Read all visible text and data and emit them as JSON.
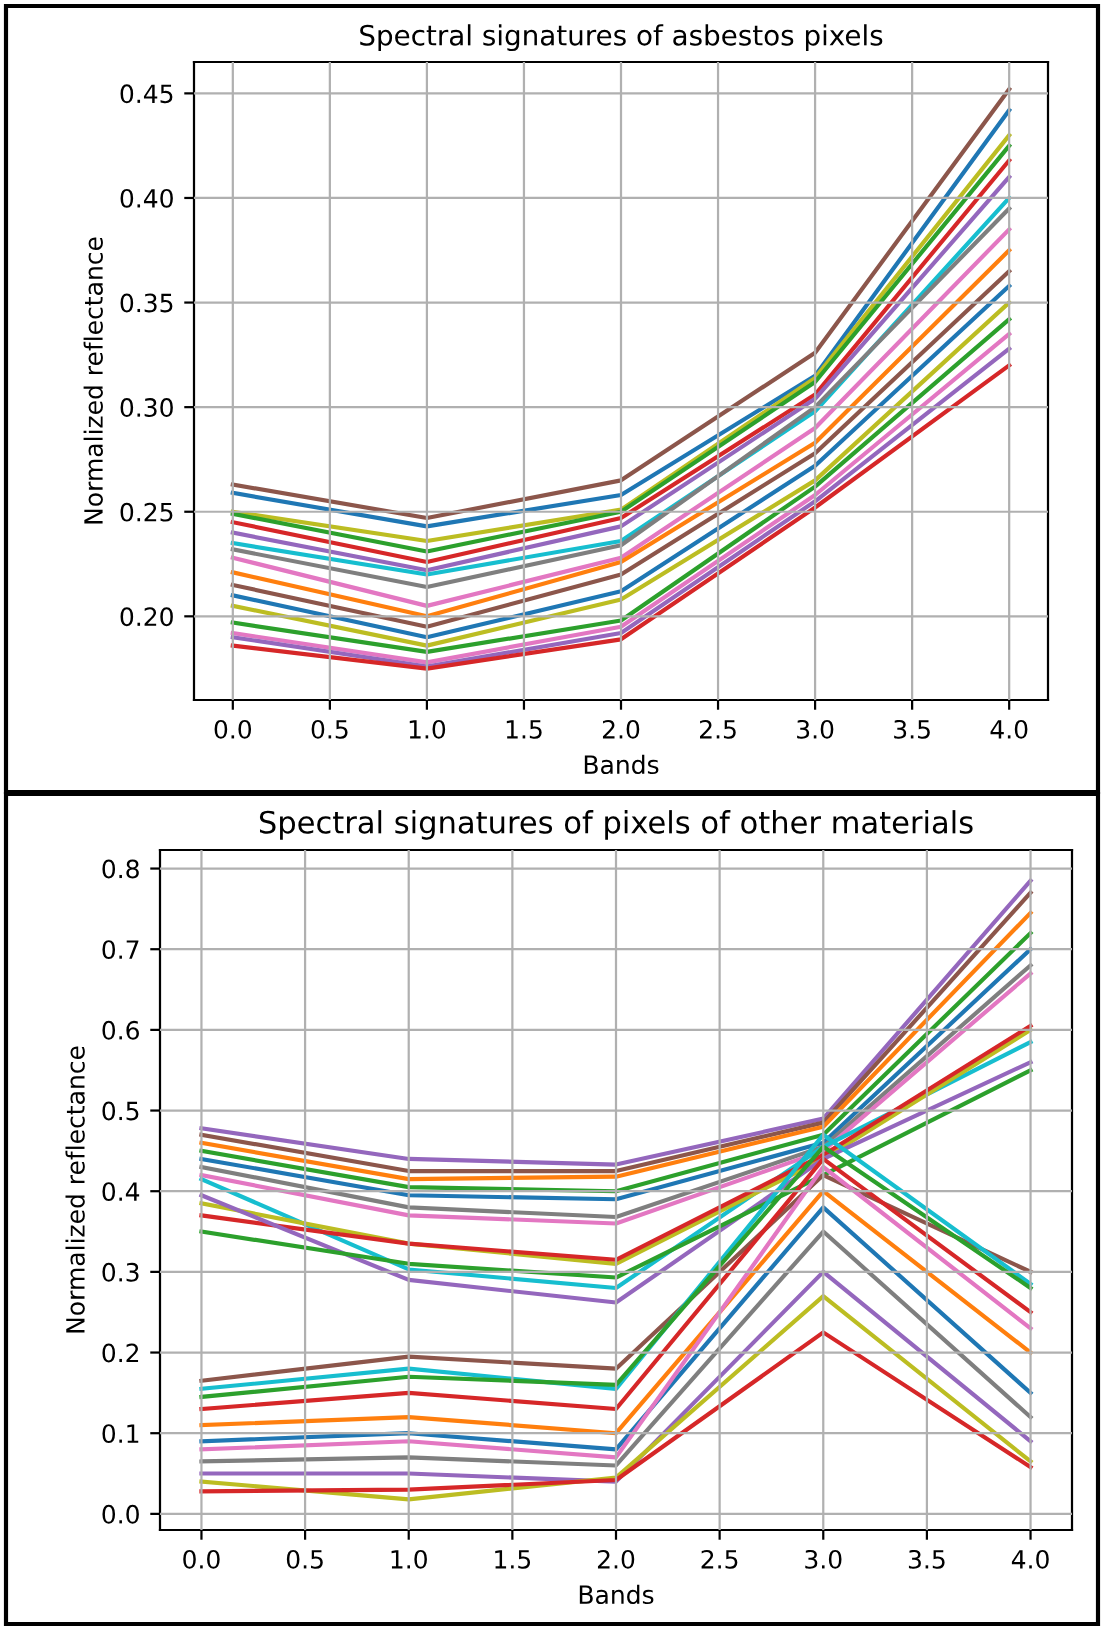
{
  "chart_data": [
    {
      "type": "line",
      "title": "Spectral signatures of asbestos pixels",
      "xlabel": "Bands",
      "ylabel": "Normalized reflectance",
      "grid": true,
      "x": [
        0,
        1,
        2,
        3,
        4
      ],
      "xlim": [
        -0.2,
        4.2
      ],
      "xticks": [
        {
          "value": 0,
          "label": "0.0"
        },
        {
          "value": 0.5,
          "label": "0.5"
        },
        {
          "value": 1,
          "label": "1.0"
        },
        {
          "value": 1.5,
          "label": "1.5"
        },
        {
          "value": 2,
          "label": "2.0"
        },
        {
          "value": 2.5,
          "label": "2.5"
        },
        {
          "value": 3,
          "label": "3.0"
        },
        {
          "value": 3.5,
          "label": "3.5"
        },
        {
          "value": 4,
          "label": "4.0"
        }
      ],
      "ylim": [
        0.16,
        0.465
      ],
      "yticks": [
        {
          "value": 0.2,
          "label": "0.20"
        },
        {
          "value": 0.25,
          "label": "0.25"
        },
        {
          "value": 0.3,
          "label": "0.30"
        },
        {
          "value": 0.35,
          "label": "0.35"
        },
        {
          "value": 0.4,
          "label": "0.40"
        },
        {
          "value": 0.45,
          "label": "0.45"
        }
      ],
      "series": [
        {
          "color": "#8c564b",
          "values": [
            0.263,
            0.247,
            0.265,
            0.326,
            0.452
          ]
        },
        {
          "color": "#1f77b4",
          "values": [
            0.259,
            0.243,
            0.258,
            0.315,
            0.442
          ]
        },
        {
          "color": "#bcbd22",
          "values": [
            0.25,
            0.236,
            0.251,
            0.314,
            0.43
          ]
        },
        {
          "color": "#2ca02c",
          "values": [
            0.249,
            0.231,
            0.25,
            0.312,
            0.425
          ]
        },
        {
          "color": "#d62728",
          "values": [
            0.245,
            0.226,
            0.247,
            0.306,
            0.418
          ]
        },
        {
          "color": "#9467bd",
          "values": [
            0.24,
            0.222,
            0.243,
            0.304,
            0.41
          ]
        },
        {
          "color": "#17becf",
          "values": [
            0.235,
            0.22,
            0.236,
            0.298,
            0.4
          ]
        },
        {
          "color": "#7f7f7f",
          "values": [
            0.232,
            0.214,
            0.234,
            0.3,
            0.395
          ]
        },
        {
          "color": "#e377c2",
          "values": [
            0.228,
            0.205,
            0.228,
            0.29,
            0.385
          ]
        },
        {
          "color": "#ff7f0e",
          "values": [
            0.221,
            0.2,
            0.226,
            0.283,
            0.375
          ]
        },
        {
          "color": "#8c564b",
          "values": [
            0.215,
            0.195,
            0.22,
            0.278,
            0.365
          ]
        },
        {
          "color": "#1f77b4",
          "values": [
            0.21,
            0.19,
            0.212,
            0.272,
            0.358
          ]
        },
        {
          "color": "#bcbd22",
          "values": [
            0.205,
            0.186,
            0.208,
            0.265,
            0.35
          ]
        },
        {
          "color": "#2ca02c",
          "values": [
            0.197,
            0.183,
            0.198,
            0.262,
            0.342
          ]
        },
        {
          "color": "#e377c2",
          "values": [
            0.192,
            0.178,
            0.195,
            0.258,
            0.335
          ]
        },
        {
          "color": "#9467bd",
          "values": [
            0.19,
            0.176,
            0.192,
            0.255,
            0.328
          ]
        },
        {
          "color": "#d62728",
          "values": [
            0.186,
            0.175,
            0.189,
            0.252,
            0.32
          ]
        }
      ]
    },
    {
      "type": "line",
      "title": "Spectral signatures of pixels of other materials",
      "xlabel": "Bands",
      "ylabel": "Normalized reflectance",
      "grid": true,
      "x": [
        0,
        1,
        2,
        3,
        4
      ],
      "xlim": [
        -0.2,
        4.2
      ],
      "xticks": [
        {
          "value": 0,
          "label": "0.0"
        },
        {
          "value": 0.5,
          "label": "0.5"
        },
        {
          "value": 1,
          "label": "1.0"
        },
        {
          "value": 1.5,
          "label": "1.5"
        },
        {
          "value": 2,
          "label": "2.0"
        },
        {
          "value": 2.5,
          "label": "2.5"
        },
        {
          "value": 3,
          "label": "3.0"
        },
        {
          "value": 3.5,
          "label": "3.5"
        },
        {
          "value": 4,
          "label": "4.0"
        }
      ],
      "ylim": [
        -0.02,
        0.823
      ],
      "yticks": [
        {
          "value": 0,
          "label": "0.0"
        },
        {
          "value": 0.1,
          "label": "0.1"
        },
        {
          "value": 0.2,
          "label": "0.2"
        },
        {
          "value": 0.3,
          "label": "0.3"
        },
        {
          "value": 0.4,
          "label": "0.4"
        },
        {
          "value": 0.5,
          "label": "0.5"
        },
        {
          "value": 0.6,
          "label": "0.6"
        },
        {
          "value": 0.7,
          "label": "0.7"
        },
        {
          "value": 0.8,
          "label": "0.8"
        }
      ],
      "series": [
        {
          "color": "#9467bd",
          "values": [
            0.478,
            0.44,
            0.433,
            0.49,
            0.785
          ]
        },
        {
          "color": "#8c564b",
          "values": [
            0.47,
            0.425,
            0.425,
            0.485,
            0.77
          ]
        },
        {
          "color": "#ff7f0e",
          "values": [
            0.46,
            0.415,
            0.418,
            0.48,
            0.745
          ]
        },
        {
          "color": "#2ca02c",
          "values": [
            0.45,
            0.405,
            0.4,
            0.47,
            0.72
          ]
        },
        {
          "color": "#1f77b4",
          "values": [
            0.44,
            0.395,
            0.39,
            0.46,
            0.7
          ]
        },
        {
          "color": "#7f7f7f",
          "values": [
            0.43,
            0.38,
            0.368,
            0.455,
            0.68
          ]
        },
        {
          "color": "#e377c2",
          "values": [
            0.42,
            0.37,
            0.36,
            0.45,
            0.67
          ]
        },
        {
          "color": "#17becf",
          "values": [
            0.415,
            0.303,
            0.28,
            0.455,
            0.585
          ]
        },
        {
          "color": "#bcbd22",
          "values": [
            0.385,
            0.335,
            0.31,
            0.44,
            0.6
          ]
        },
        {
          "color": "#d62728",
          "values": [
            0.37,
            0.335,
            0.315,
            0.445,
            0.605
          ]
        },
        {
          "color": "#9467bd",
          "values": [
            0.395,
            0.29,
            0.262,
            0.44,
            0.56
          ]
        },
        {
          "color": "#2ca02c",
          "values": [
            0.35,
            0.31,
            0.293,
            0.42,
            0.55
          ]
        },
        {
          "color": "#8c564b",
          "values": [
            0.165,
            0.195,
            0.18,
            0.42,
            0.3
          ]
        },
        {
          "color": "#17becf",
          "values": [
            0.155,
            0.18,
            0.155,
            0.47,
            0.285
          ]
        },
        {
          "color": "#2ca02c",
          "values": [
            0.145,
            0.17,
            0.16,
            0.455,
            0.28
          ]
        },
        {
          "color": "#d62728",
          "values": [
            0.13,
            0.15,
            0.13,
            0.44,
            0.25
          ]
        },
        {
          "color": "#ff7f0e",
          "values": [
            0.11,
            0.12,
            0.1,
            0.4,
            0.2
          ]
        },
        {
          "color": "#1f77b4",
          "values": [
            0.09,
            0.1,
            0.08,
            0.38,
            0.15
          ]
        },
        {
          "color": "#e377c2",
          "values": [
            0.08,
            0.09,
            0.07,
            0.43,
            0.23
          ]
        },
        {
          "color": "#7f7f7f",
          "values": [
            0.065,
            0.07,
            0.06,
            0.35,
            0.12
          ]
        },
        {
          "color": "#9467bd",
          "values": [
            0.05,
            0.05,
            0.04,
            0.3,
            0.09
          ]
        },
        {
          "color": "#bcbd22",
          "values": [
            0.04,
            0.018,
            0.045,
            0.27,
            0.065
          ]
        },
        {
          "color": "#d62728",
          "values": [
            0.028,
            0.03,
            0.042,
            0.225,
            0.058
          ]
        }
      ]
    }
  ]
}
